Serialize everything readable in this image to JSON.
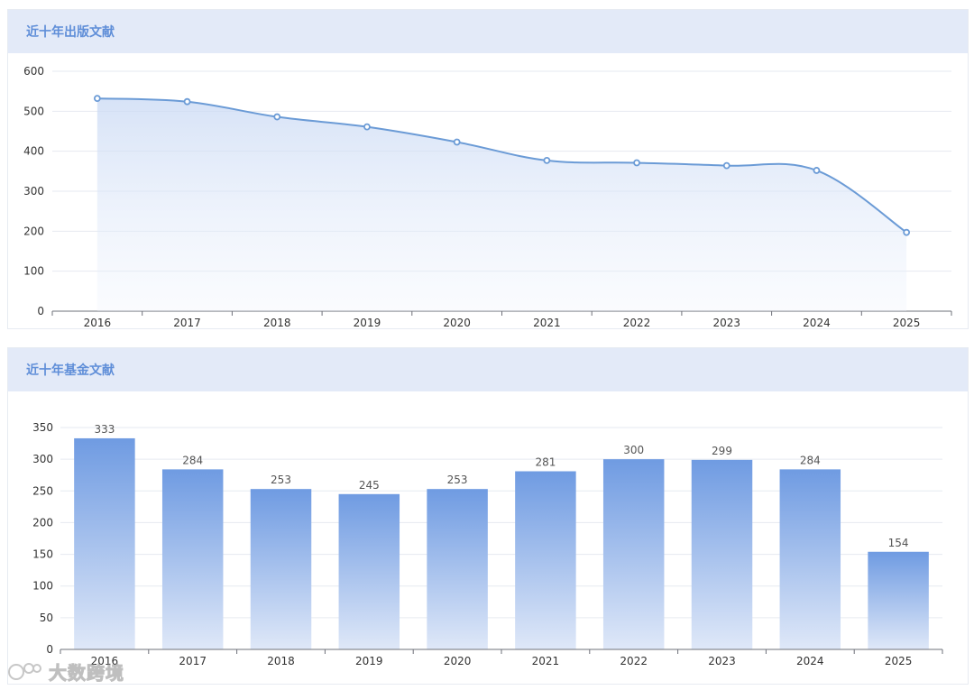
{
  "panels": {
    "line": {
      "title": "近十年出版文献"
    },
    "bar": {
      "title": "近十年基金文献"
    }
  },
  "watermark": {
    "text": "大数跨境"
  },
  "colors": {
    "accent": "#5f8ed8",
    "line": "#6b9bd6",
    "bar_top": "#6f9be2",
    "bar_bottom": "#dfe8f8",
    "grid": "#e6eaf0",
    "axis_text": "#333333"
  },
  "chart_data": [
    {
      "type": "area",
      "title": "近十年出版文献",
      "categories": [
        "2016",
        "2017",
        "2018",
        "2019",
        "2020",
        "2021",
        "2022",
        "2023",
        "2024",
        "2025"
      ],
      "values": [
        532,
        524,
        486,
        461,
        423,
        377,
        371,
        364,
        352,
        197
      ],
      "yticks": [
        "0",
        "100",
        "200",
        "300",
        "400",
        "500",
        "600"
      ],
      "ylim": [
        0,
        600
      ],
      "smooth": true,
      "grid": true,
      "legend": "none"
    },
    {
      "type": "bar",
      "title": "近十年基金文献",
      "categories": [
        "2016",
        "2017",
        "2018",
        "2019",
        "2020",
        "2021",
        "2022",
        "2023",
        "2024",
        "2025"
      ],
      "values": [
        333,
        284,
        253,
        245,
        253,
        281,
        300,
        299,
        284,
        154
      ],
      "data_labels": [
        "333",
        "284",
        "253",
        "245",
        "253",
        "281",
        "300",
        "299",
        "284",
        "154"
      ],
      "yticks": [
        "0",
        "50",
        "100",
        "150",
        "200",
        "250",
        "300",
        "350"
      ],
      "ylim": [
        0,
        350
      ],
      "grid": true,
      "legend": "none"
    }
  ]
}
